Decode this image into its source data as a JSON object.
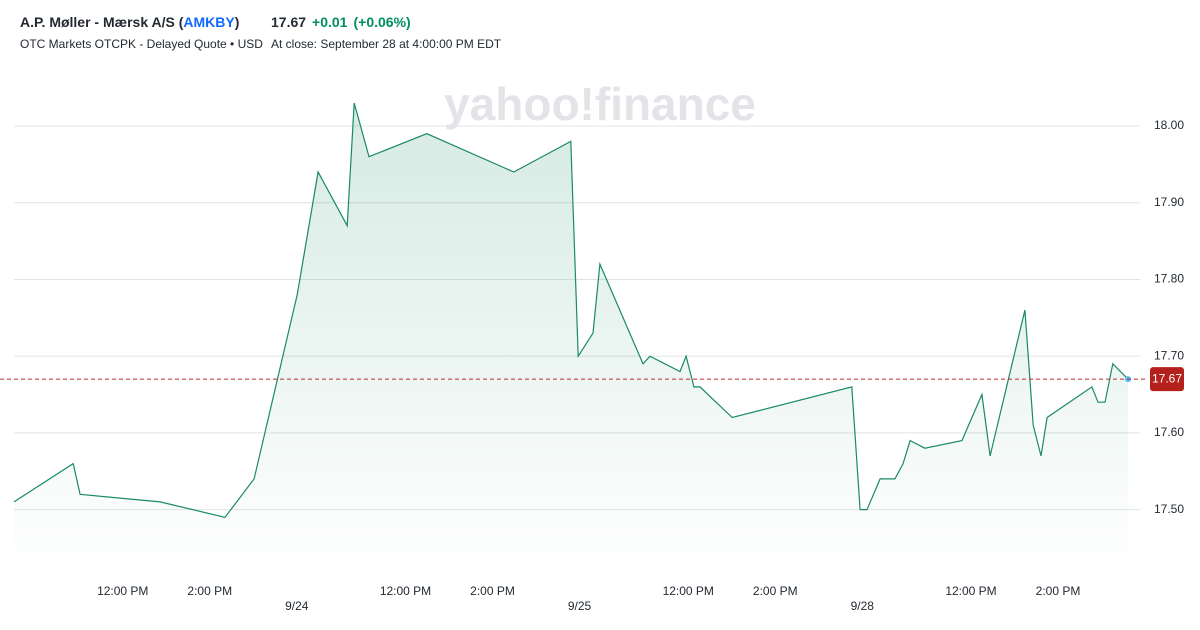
{
  "header": {
    "name_prefix": "A.P. Møller - Mærsk A/S (",
    "symbol": "AMKBY",
    "name_suffix": ")",
    "exchange": "OTC Markets OTCPK - Delayed Quote • USD",
    "price": "17.67",
    "change": "+0.01",
    "change_percent": "(+0.06%)",
    "close_time": "At close: September 28 at 4:00:00 PM EDT"
  },
  "chart_data": {
    "type": "line",
    "watermark": "yahoo!finance",
    "color": "#1a8a63",
    "x": [
      0,
      1.36,
      1.52,
      3.36,
      4.85,
      5.52,
      6.51,
      6.99,
      7.66,
      7.82,
      8.16,
      9.49,
      11.49,
      12.8,
      12.97,
      13.31,
      13.47,
      14.46,
      14.62,
      15.31,
      15.45,
      15.63,
      15.77,
      16.51,
      19.26,
      19.45,
      19.61,
      19.91,
      20.25,
      20.44,
      20.6,
      20.94,
      21.79,
      22.25,
      22.44,
      23.24,
      23.43,
      23.61,
      23.75,
      24.78,
      24.92,
      25.08,
      25.26,
      25.61
    ],
    "series": [
      {
        "name": "AMKBY",
        "color": "#1a8a63",
        "values": [
          17.51,
          17.56,
          17.52,
          17.51,
          17.49,
          17.54,
          17.78,
          17.94,
          17.87,
          18.03,
          17.96,
          17.99,
          17.94,
          17.98,
          17.7,
          17.73,
          17.82,
          17.69,
          17.7,
          17.68,
          17.7,
          17.66,
          17.66,
          17.62,
          17.66,
          17.5,
          17.5,
          17.54,
          17.54,
          17.56,
          17.59,
          17.58,
          17.59,
          17.65,
          17.57,
          17.76,
          17.61,
          17.57,
          17.62,
          17.66,
          17.64,
          17.64,
          17.69,
          17.67
        ]
      }
    ],
    "last_price": 17.67,
    "xlim": [
      0,
      26
    ],
    "xticks": [
      {
        "value": 2.5,
        "label": "12:00 PM"
      },
      {
        "value": 4.5,
        "label": "2:00 PM"
      },
      {
        "value": 6.5,
        "label": "9/24"
      },
      {
        "value": 9,
        "label": "12:00 PM"
      },
      {
        "value": 11,
        "label": "2:00 PM"
      },
      {
        "value": 13,
        "label": "9/25"
      },
      {
        "value": 15.5,
        "label": "12:00 PM"
      },
      {
        "value": 17.5,
        "label": "2:00 PM"
      },
      {
        "value": 19.5,
        "label": "9/28"
      },
      {
        "value": 22,
        "label": "12:00 PM"
      },
      {
        "value": 24,
        "label": "2:00 PM"
      }
    ],
    "ylim": [
      17.42,
      18.04
    ],
    "yticks": [
      {
        "value": 17.5,
        "label": "17.50"
      },
      {
        "value": 17.6,
        "label": "17.60"
      },
      {
        "value": 17.7,
        "label": "17.70"
      },
      {
        "value": 17.8,
        "label": "17.80"
      },
      {
        "value": 17.9,
        "label": "17.90"
      },
      {
        "value": 18.0,
        "label": "18.00"
      }
    ],
    "grid": true
  }
}
